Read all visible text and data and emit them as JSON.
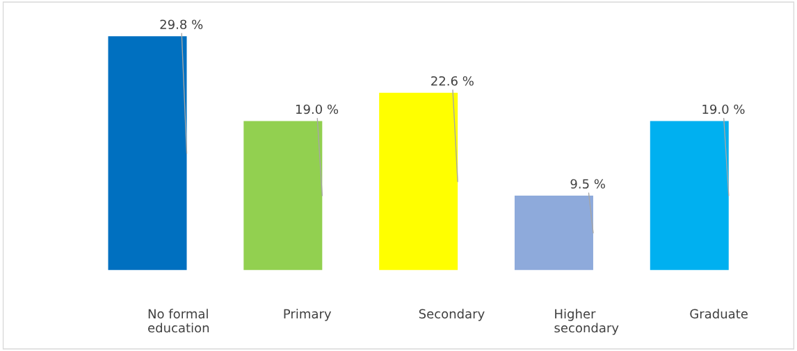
{
  "chart_data": {
    "type": "bar",
    "categories": [
      "No formal\neducation",
      "Primary",
      "Secondary",
      "Higher\nsecondary",
      "Graduate"
    ],
    "values": [
      29.8,
      19.0,
      22.6,
      9.5,
      19.0
    ],
    "value_labels": [
      "29.8 %",
      "19.0 %",
      "22.6 %",
      "9.5 %",
      "19.0 %"
    ],
    "colors": [
      "#0070c0",
      "#92d050",
      "#ffff00",
      "#8eaadb",
      "#00b0f0"
    ],
    "grid": false,
    "legend": false
  }
}
